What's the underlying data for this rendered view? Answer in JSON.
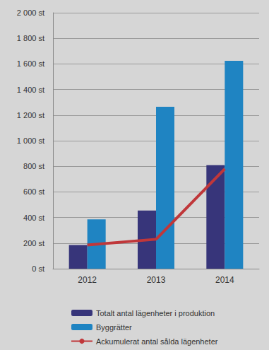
{
  "chart_data": {
    "type": "bar",
    "categories": [
      "2012",
      "2013",
      "2014"
    ],
    "series": [
      {
        "name": "Totalt antal lägenheter i produktion",
        "type": "bar",
        "color": "#37357a",
        "values": [
          185,
          455,
          810
        ]
      },
      {
        "name": "Byggrätter",
        "type": "bar",
        "color": "#1f84c2",
        "values": [
          385,
          1265,
          1625
        ]
      },
      {
        "name": "Ackumulerat antal sålda lägenheter",
        "type": "line",
        "color": "#c0373a",
        "values": [
          185,
          230,
          780
        ]
      }
    ],
    "ylim": [
      0,
      2000
    ],
    "yticks": [
      {
        "value": 0,
        "label": "0 st"
      },
      {
        "value": 200,
        "label": "200 st"
      },
      {
        "value": 400,
        "label": "400 st"
      },
      {
        "value": 600,
        "label": "600 st"
      },
      {
        "value": 800,
        "label": "800 st"
      },
      {
        "value": 1000,
        "label": "1 000 st"
      },
      {
        "value": 1200,
        "label": "1 200 st"
      },
      {
        "value": 1400,
        "label": "1 400 st"
      },
      {
        "value": 1600,
        "label": "1 600 st"
      },
      {
        "value": 1800,
        "label": "1 800 st"
      },
      {
        "value": 2000,
        "label": "2 000 st"
      }
    ],
    "grid": true,
    "legend": "bottom"
  }
}
